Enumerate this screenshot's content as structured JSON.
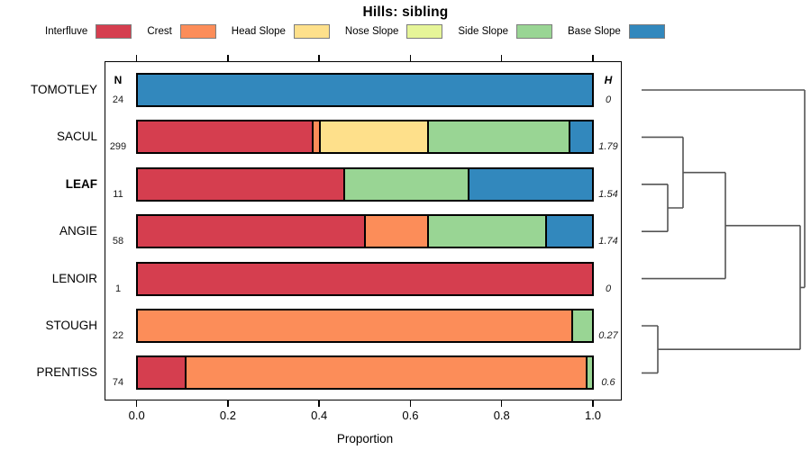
{
  "title": "Hills: sibling",
  "headers": {
    "n": "N",
    "h": "H"
  },
  "chart_data": {
    "type": "bar",
    "subtype": "horizontal_stacked_proportions_with_dendrogram",
    "title": "Hills: sibling",
    "xlabel": "Proportion",
    "xlim": [
      0,
      1
    ],
    "xticks": [
      0,
      0.2,
      0.4,
      0.6,
      0.8,
      1
    ],
    "xtick_labels": [
      "0.0",
      "0.2",
      "0.4",
      "0.6",
      "0.8",
      "1.0"
    ],
    "legend": [
      "Interfluve",
      "Crest",
      "Head Slope",
      "Nose Slope",
      "Side Slope",
      "Base Slope"
    ],
    "colors": {
      "Interfluve": "#D53E4F",
      "Crest": "#FC8D59",
      "Head Slope": "#FEE08B",
      "Nose Slope": "#E6F598",
      "Side Slope": "#99D594",
      "Base Slope": "#3288BD"
    },
    "categories": [
      "TOMOTLEY",
      "SACUL",
      "LEAF",
      "ANGIE",
      "LENOIR",
      "STOUGH",
      "PRENTISS"
    ],
    "rows": [
      {
        "category": "TOMOTLEY",
        "n": 24,
        "h": "0",
        "emphasized": false,
        "segments": [
          {
            "name": "Base Slope",
            "value": 1.0
          }
        ]
      },
      {
        "category": "SACUL",
        "n": 299,
        "h": "1.79",
        "emphasized": false,
        "segments": [
          {
            "name": "Interfluve",
            "value": 0.385
          },
          {
            "name": "Crest",
            "value": 0.017
          },
          {
            "name": "Head Slope",
            "value": 0.237
          },
          {
            "name": "Side Slope",
            "value": 0.31
          },
          {
            "name": "Base Slope",
            "value": 0.051
          }
        ]
      },
      {
        "category": "LEAF",
        "n": 11,
        "h": "1.54",
        "emphasized": true,
        "segments": [
          {
            "name": "Interfluve",
            "value": 0.455
          },
          {
            "name": "Side Slope",
            "value": 0.272
          },
          {
            "name": "Base Slope",
            "value": 0.273
          }
        ]
      },
      {
        "category": "ANGIE",
        "n": 58,
        "h": "1.74",
        "emphasized": false,
        "segments": [
          {
            "name": "Interfluve",
            "value": 0.5
          },
          {
            "name": "Crest",
            "value": 0.138
          },
          {
            "name": "Side Slope",
            "value": 0.259
          },
          {
            "name": "Base Slope",
            "value": 0.103
          }
        ]
      },
      {
        "category": "LENOIR",
        "n": 1,
        "h": "0",
        "emphasized": false,
        "segments": [
          {
            "name": "Interfluve",
            "value": 1.0
          }
        ]
      },
      {
        "category": "STOUGH",
        "n": 22,
        "h": "0.27",
        "emphasized": false,
        "segments": [
          {
            "name": "Crest",
            "value": 0.955
          },
          {
            "name": "Side Slope",
            "value": 0.045
          }
        ]
      },
      {
        "category": "PRENTISS",
        "n": 74,
        "h": "0.6",
        "emphasized": false,
        "segments": [
          {
            "name": "Interfluve",
            "value": 0.108
          },
          {
            "name": "Crest",
            "value": 0.878
          },
          {
            "name": "Side Slope",
            "value": 0.014
          }
        ]
      }
    ],
    "dendrogram": {
      "orientation": "right",
      "leaf_x": 712,
      "merges": [
        {
          "children": [
            "LEAF",
            "ANGIE"
          ],
          "x": 741
        },
        {
          "children": [
            "SACUL",
            0
          ],
          "x": 758
        },
        {
          "children": [
            1,
            "LENOIR"
          ],
          "x": 805
        },
        {
          "children": [
            "STOUGH",
            "PRENTISS"
          ],
          "x": 730
        },
        {
          "children": [
            2,
            3
          ],
          "x": 888
        },
        {
          "children": [
            4,
            "TOMOTLEY"
          ],
          "x": 893
        }
      ]
    }
  }
}
